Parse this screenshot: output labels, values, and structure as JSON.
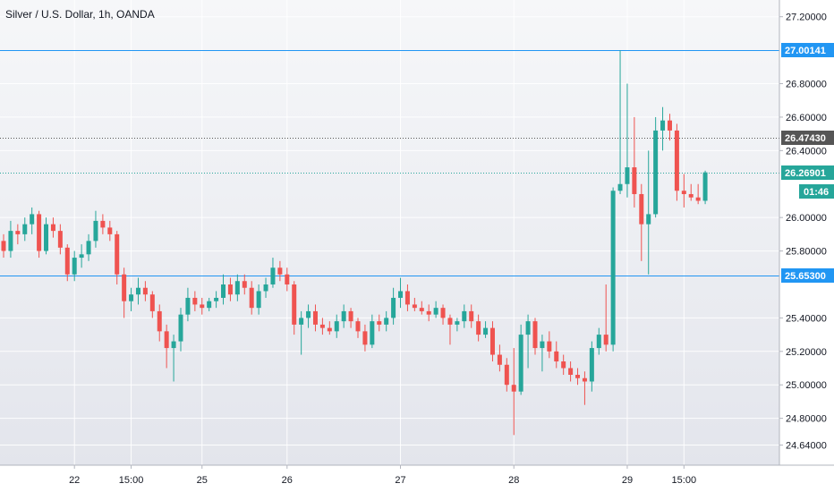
{
  "chart_data": {
    "type": "candlestick",
    "title": "Silver / U.S. Dollar, 1h, OANDA",
    "timeframe": "1h",
    "source": "OANDA",
    "grid": true,
    "ylim": [
      24.52,
      27.3
    ],
    "y_ticks": [
      "27.20000",
      "26.80000",
      "26.60000",
      "26.40000",
      "26.00000",
      "25.80000",
      "25.40000",
      "25.20000",
      "25.00000",
      "24.80000",
      "24.64000"
    ],
    "y_tick_values": [
      27.2,
      26.8,
      26.6,
      26.4,
      26.0,
      25.8,
      25.4,
      25.2,
      25.0,
      24.8,
      24.64
    ],
    "x_ticks": [
      "22",
      "15:00",
      "25",
      "26",
      "27",
      "28",
      "29",
      "15:00"
    ],
    "x_tick_index": [
      10,
      18,
      28,
      40,
      56,
      72,
      88,
      96
    ],
    "horizontal_lines": [
      {
        "label": "27.00141",
        "value": 27.00141,
        "color": "#2196f3",
        "style": "solid"
      },
      {
        "label": "26.47430",
        "value": 26.4743,
        "color": "#555555",
        "style": "dotted"
      },
      {
        "label": "26.26901",
        "value": 26.26901,
        "color": "#26a69a",
        "style": "dotted"
      },
      {
        "label": "25.65300",
        "value": 25.653,
        "color": "#2196f3",
        "style": "solid"
      }
    ],
    "countdown": "01:46",
    "colors": {
      "up": "#26a69a",
      "down": "#ef5350",
      "line": "#2196f3",
      "price": "#26a69a",
      "marker": "#555555"
    },
    "candles": [
      [
        25.86,
        25.9,
        25.76,
        25.8
      ],
      [
        25.8,
        25.98,
        25.76,
        25.92
      ],
      [
        25.92,
        25.96,
        25.84,
        25.9
      ],
      [
        25.9,
        26.0,
        25.86,
        25.96
      ],
      [
        25.96,
        26.06,
        25.9,
        26.02
      ],
      [
        26.02,
        26.04,
        25.76,
        25.8
      ],
      [
        25.8,
        26.0,
        25.78,
        25.96
      ],
      [
        25.96,
        26.0,
        25.88,
        25.92
      ],
      [
        25.92,
        25.96,
        25.78,
        25.82
      ],
      [
        25.82,
        25.84,
        25.62,
        25.66
      ],
      [
        25.66,
        25.8,
        25.62,
        25.76
      ],
      [
        25.76,
        25.84,
        25.7,
        25.78
      ],
      [
        25.78,
        25.9,
        25.74,
        25.86
      ],
      [
        25.86,
        26.04,
        25.82,
        25.98
      ],
      [
        25.98,
        26.02,
        25.9,
        25.94
      ],
      [
        25.94,
        25.98,
        25.86,
        25.9
      ],
      [
        25.9,
        25.92,
        25.6,
        25.66
      ],
      [
        25.66,
        25.7,
        25.4,
        25.5
      ],
      [
        25.5,
        25.58,
        25.44,
        25.54
      ],
      [
        25.54,
        25.64,
        25.48,
        25.58
      ],
      [
        25.58,
        25.62,
        25.5,
        25.54
      ],
      [
        25.54,
        25.56,
        25.4,
        25.44
      ],
      [
        25.44,
        25.48,
        25.26,
        25.32
      ],
      [
        25.32,
        25.36,
        25.1,
        25.22
      ],
      [
        25.22,
        25.3,
        25.02,
        25.26
      ],
      [
        25.26,
        25.46,
        25.2,
        25.42
      ],
      [
        25.42,
        25.58,
        25.38,
        25.52
      ],
      [
        25.52,
        25.56,
        25.44,
        25.48
      ],
      [
        25.48,
        25.52,
        25.42,
        25.46
      ],
      [
        25.46,
        25.52,
        25.44,
        25.5
      ],
      [
        25.5,
        25.56,
        25.46,
        25.52
      ],
      [
        25.52,
        25.66,
        25.48,
        25.6
      ],
      [
        25.6,
        25.64,
        25.5,
        25.54
      ],
      [
        25.54,
        25.66,
        25.5,
        25.62
      ],
      [
        25.62,
        25.66,
        25.54,
        25.58
      ],
      [
        25.58,
        25.62,
        25.42,
        25.46
      ],
      [
        25.46,
        25.6,
        25.42,
        25.56
      ],
      [
        25.56,
        25.64,
        25.52,
        25.6
      ],
      [
        25.6,
        25.76,
        25.58,
        25.7
      ],
      [
        25.7,
        25.74,
        25.62,
        25.66
      ],
      [
        25.66,
        25.7,
        25.56,
        25.6
      ],
      [
        25.6,
        25.62,
        25.3,
        25.36
      ],
      [
        25.36,
        25.44,
        25.18,
        25.4
      ],
      [
        25.4,
        25.48,
        25.34,
        25.44
      ],
      [
        25.44,
        25.48,
        25.32,
        25.36
      ],
      [
        25.36,
        25.4,
        25.3,
        25.34
      ],
      [
        25.34,
        25.38,
        25.3,
        25.32
      ],
      [
        25.32,
        25.42,
        25.28,
        25.38
      ],
      [
        25.38,
        25.48,
        25.34,
        25.44
      ],
      [
        25.44,
        25.46,
        25.34,
        25.38
      ],
      [
        25.38,
        25.4,
        25.28,
        25.32
      ],
      [
        25.32,
        25.36,
        25.2,
        25.24
      ],
      [
        25.24,
        25.42,
        25.22,
        25.38
      ],
      [
        25.38,
        25.42,
        25.32,
        25.36
      ],
      [
        25.36,
        25.44,
        25.32,
        25.4
      ],
      [
        25.4,
        25.58,
        25.36,
        25.52
      ],
      [
        25.52,
        25.64,
        25.46,
        25.56
      ],
      [
        25.56,
        25.6,
        25.44,
        25.48
      ],
      [
        25.48,
        25.52,
        25.44,
        25.46
      ],
      [
        25.46,
        25.5,
        25.42,
        25.44
      ],
      [
        25.44,
        25.48,
        25.38,
        25.42
      ],
      [
        25.42,
        25.5,
        25.4,
        25.46
      ],
      [
        25.46,
        25.48,
        25.36,
        25.4
      ],
      [
        25.4,
        25.42,
        25.24,
        25.36
      ],
      [
        25.36,
        25.4,
        25.32,
        25.38
      ],
      [
        25.38,
        25.48,
        25.34,
        25.44
      ],
      [
        25.44,
        25.48,
        25.34,
        25.38
      ],
      [
        25.38,
        25.42,
        25.26,
        25.3
      ],
      [
        25.3,
        25.38,
        25.28,
        25.34
      ],
      [
        25.34,
        25.38,
        25.14,
        25.18
      ],
      [
        25.18,
        25.24,
        25.08,
        25.12
      ],
      [
        25.12,
        25.16,
        24.96,
        25.0
      ],
      [
        25.0,
        25.22,
        24.7,
        24.96
      ],
      [
        24.96,
        25.36,
        24.94,
        25.3
      ],
      [
        25.3,
        25.42,
        25.1,
        25.38
      ],
      [
        25.38,
        25.4,
        25.18,
        25.22
      ],
      [
        25.22,
        25.3,
        25.08,
        25.26
      ],
      [
        25.26,
        25.32,
        25.16,
        25.2
      ],
      [
        25.2,
        25.26,
        25.1,
        25.14
      ],
      [
        25.14,
        25.18,
        25.06,
        25.1
      ],
      [
        25.1,
        25.14,
        25.02,
        25.06
      ],
      [
        25.06,
        25.1,
        25.0,
        25.04
      ],
      [
        25.04,
        25.08,
        24.88,
        25.02
      ],
      [
        25.02,
        25.26,
        24.96,
        25.22
      ],
      [
        25.22,
        25.34,
        25.18,
        25.3
      ],
      [
        25.3,
        25.6,
        25.2,
        25.24
      ],
      [
        25.24,
        26.18,
        25.2,
        26.16
      ],
      [
        26.16,
        27.0,
        26.14,
        26.2
      ],
      [
        26.2,
        26.8,
        26.12,
        26.3
      ],
      [
        26.3,
        26.6,
        26.06,
        26.14
      ],
      [
        26.14,
        26.2,
        25.74,
        25.96
      ],
      [
        25.96,
        26.4,
        25.66,
        26.02
      ],
      [
        26.02,
        26.6,
        26.0,
        26.52
      ],
      [
        26.52,
        26.66,
        26.4,
        26.58
      ],
      [
        26.58,
        26.62,
        26.46,
        26.52
      ],
      [
        26.52,
        26.56,
        26.1,
        26.16
      ],
      [
        26.16,
        26.26,
        26.06,
        26.14
      ],
      [
        26.14,
        26.2,
        26.1,
        26.12
      ],
      [
        26.12,
        26.2,
        26.08,
        26.1
      ],
      [
        26.1,
        26.28,
        26.08,
        26.27
      ]
    ]
  }
}
